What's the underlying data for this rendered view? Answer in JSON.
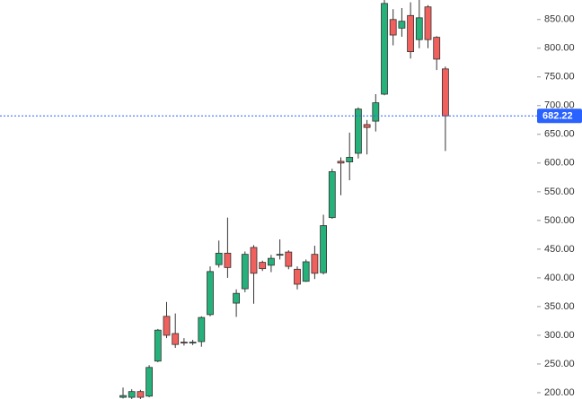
{
  "chart_data": {
    "type": "candlestick",
    "open": [
      192,
      192,
      202,
      194,
      255,
      333,
      303,
      288,
      287,
      289,
      336,
      423,
      443,
      356,
      381,
      453,
      427,
      422,
      440,
      445,
      415,
      394,
      441,
      409,
      505,
      603,
      602,
      617,
      667,
      673,
      720,
      850,
      835,
      857,
      815,
      872,
      819,
      764
    ],
    "high": [
      209,
      206,
      205,
      248,
      311,
      358,
      338,
      295,
      292,
      333,
      420,
      465,
      505,
      380,
      446,
      457,
      430,
      440,
      467,
      448,
      420,
      432,
      456,
      510,
      590,
      610,
      653,
      697,
      675,
      720,
      884,
      868,
      870,
      880,
      884,
      875,
      821,
      768
    ],
    "low": [
      190,
      189,
      189,
      192,
      253,
      295,
      278,
      282,
      283,
      280,
      333,
      418,
      400,
      332,
      375,
      355,
      412,
      410,
      432,
      415,
      380,
      393,
      398,
      406,
      503,
      544,
      570,
      608,
      615,
      655,
      718,
      805,
      820,
      782,
      800,
      800,
      762,
      621
    ],
    "close": [
      195,
      202,
      192,
      244,
      309,
      300,
      284,
      287,
      288,
      331,
      411,
      443,
      418,
      373,
      441,
      408,
      416,
      434,
      441,
      420,
      389,
      428,
      408,
      491,
      585,
      600,
      610,
      694,
      662,
      705,
      878,
      823,
      847,
      794,
      853,
      815,
      781,
      682.22
    ],
    "up_color": "#26b07a",
    "down_color": "#f0605d",
    "last_price": 682.22,
    "last_price_color": "#2962ff",
    "ylim": [
      189,
      884
    ],
    "yticks": [
      {
        "value": 200,
        "label": "200.00"
      },
      {
        "value": 250,
        "label": "250.00"
      },
      {
        "value": 300,
        "label": "300.00"
      },
      {
        "value": 350,
        "label": "350.00"
      },
      {
        "value": 400,
        "label": "400.00"
      },
      {
        "value": 450,
        "label": "450.00"
      },
      {
        "value": 500,
        "label": "500.00"
      },
      {
        "value": 550,
        "label": "550.00"
      },
      {
        "value": 600,
        "label": "600.00"
      },
      {
        "value": 650,
        "label": "650.00"
      },
      {
        "value": 700,
        "label": "700.00"
      },
      {
        "value": 750,
        "label": "750.00"
      },
      {
        "value": 800,
        "label": "800.00"
      },
      {
        "value": 850,
        "label": "850.00"
      }
    ]
  }
}
